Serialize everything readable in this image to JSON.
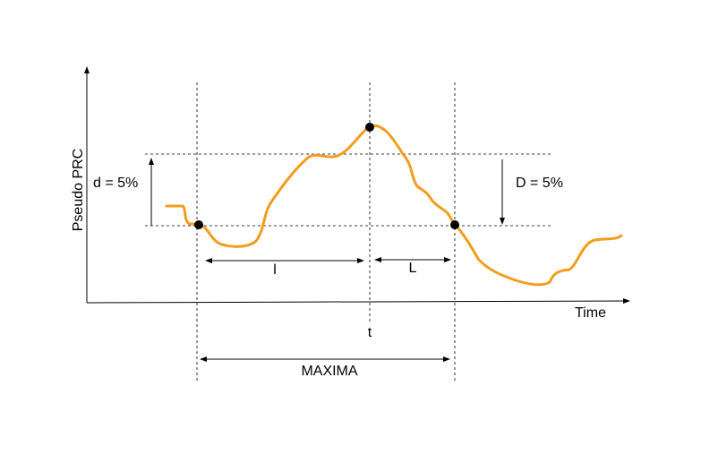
{
  "axes": {
    "y_label": "Pseudo PRC",
    "x_label": "Time"
  },
  "annotations": {
    "d_label": "d = 5%",
    "D_label": "D = 5%",
    "l_label": "l",
    "L_label": "L",
    "t_label": "t",
    "maxima_label": "MAXIMA"
  },
  "colors": {
    "curve": "#f39c1e",
    "lines": "#000000",
    "background": "#ffffff"
  }
}
